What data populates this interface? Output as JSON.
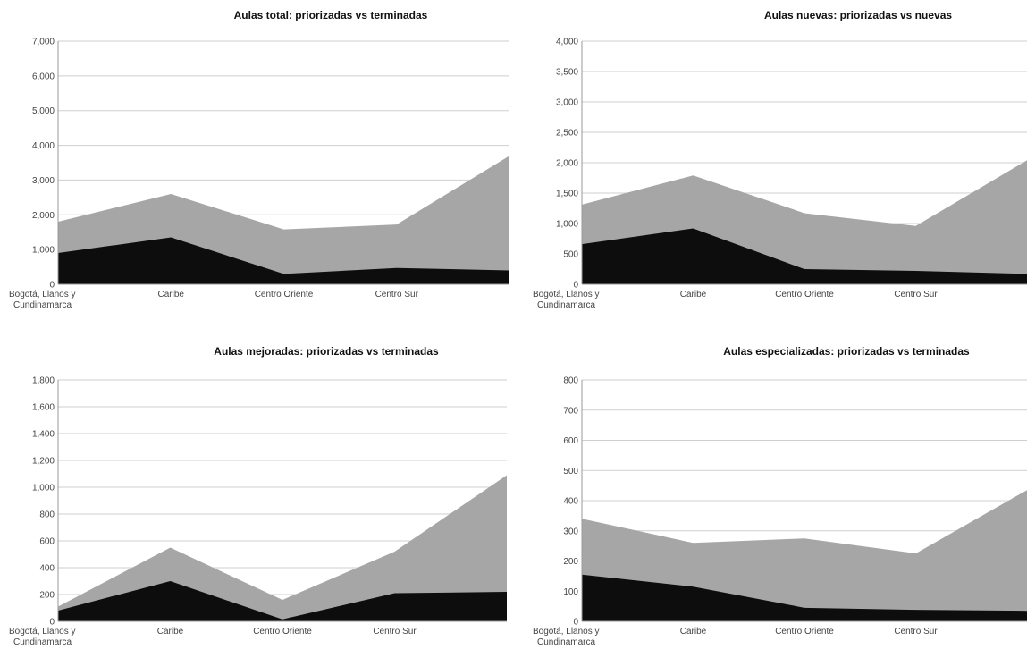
{
  "chart_data": [
    {
      "type": "area",
      "title": "Aulas total: priorizadas vs terminadas",
      "categories": [
        "Bogotá, Llanos y Cundinamarca",
        "Caribe",
        "Centro Oriente",
        "Centro Sur",
        ""
      ],
      "ylim": [
        0,
        7000
      ],
      "yticks": [
        "0",
        "1,000",
        "2,000",
        "3,000",
        "4,000",
        "5,000",
        "6,000",
        "7,000"
      ],
      "grid": true,
      "colors": [
        "#a6a6a6",
        "#0d0d0d"
      ],
      "series": [
        {
          "values": [
            1800,
            2600,
            1580,
            1720,
            3700
          ]
        },
        {
          "values": [
            900,
            1350,
            300,
            470,
            400
          ]
        }
      ]
    },
    {
      "type": "area",
      "title": "Aulas nuevas: priorizadas vs nuevas",
      "categories": [
        "Bogotá, Llanos y Cundinamarca",
        "Caribe",
        "Centro Oriente",
        "Centro Sur",
        ""
      ],
      "ylim": [
        0,
        4000
      ],
      "yticks": [
        "0",
        "500",
        "1,000",
        "1,500",
        "2,000",
        "2,500",
        "3,000",
        "3,500",
        "4,000"
      ],
      "grid": true,
      "colors": [
        "#a6a6a6",
        "#0d0d0d"
      ],
      "series": [
        {
          "values": [
            1310,
            1790,
            1170,
            960,
            2040
          ]
        },
        {
          "values": [
            660,
            920,
            250,
            220,
            170
          ]
        }
      ]
    },
    {
      "type": "area",
      "title": "Aulas mejoradas: priorizadas vs terminadas",
      "categories": [
        "Bogotá, Llanos y Cundinamarca",
        "Caribe",
        "Centro Oriente",
        "Centro Sur",
        ""
      ],
      "ylim": [
        0,
        1800
      ],
      "yticks": [
        "0",
        "200",
        "400",
        "600",
        "800",
        "1,000",
        "1,200",
        "1,400",
        "1,600",
        "1,800"
      ],
      "grid": true,
      "colors": [
        "#a6a6a6",
        "#0d0d0d"
      ],
      "series": [
        {
          "values": [
            110,
            550,
            160,
            520,
            1090
          ]
        },
        {
          "values": [
            80,
            300,
            15,
            210,
            220
          ]
        }
      ]
    },
    {
      "type": "area",
      "title": "Aulas especializadas: priorizadas vs terminadas",
      "categories": [
        "Bogotá, Llanos y Cundinamarca",
        "Caribe",
        "Centro Oriente",
        "Centro Sur",
        ""
      ],
      "ylim": [
        0,
        800
      ],
      "yticks": [
        "0",
        "100",
        "200",
        "300",
        "400",
        "500",
        "600",
        "700",
        "800"
      ],
      "grid": true,
      "colors": [
        "#a6a6a6",
        "#0d0d0d"
      ],
      "series": [
        {
          "values": [
            340,
            260,
            275,
            225,
            435
          ]
        },
        {
          "values": [
            155,
            115,
            45,
            38,
            35
          ]
        }
      ]
    }
  ]
}
